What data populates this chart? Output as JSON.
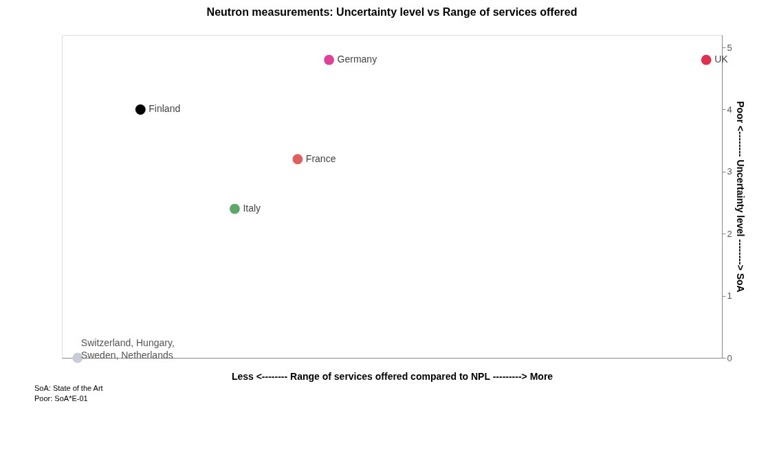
{
  "chart_data": {
    "type": "scatter",
    "title": "Neutron measurements: Uncertainty level vs Range of services offered",
    "xlabel": "Less <-------- Range of services offered compared to NPL ---------> More",
    "ylabel": "Poor <-------- Uncertainty level --------> SoA",
    "categories": [
      null,
      null,
      null,
      null,
      null,
      null,
      null,
      null,
      null,
      null,
      null,
      null,
      null,
      null,
      null,
      null,
      null,
      null,
      null,
      null,
      null
    ],
    "ylim": [
      0,
      5.2
    ],
    "yticks": [
      0,
      1,
      2,
      3,
      4,
      5
    ],
    "tick_labels": "y",
    "grid": false,
    "marker": "circle",
    "series": [
      {
        "name": "Switzerland, Hungary, Sweden, Netherlands",
        "color": "#c8ccd6",
        "values": [
          0,
          null,
          null,
          null,
          null,
          null,
          null,
          null,
          null,
          null,
          null,
          null,
          null,
          null,
          null,
          null,
          null,
          null,
          null,
          null,
          null
        ]
      },
      {
        "name": "Finland",
        "color": "#000000",
        "values": [
          null,
          null,
          4.0,
          null,
          null,
          null,
          null,
          null,
          null,
          null,
          null,
          null,
          null,
          null,
          null,
          null,
          null,
          null,
          null,
          null,
          null
        ]
      },
      {
        "name": "Italy",
        "color": "#5aa86a",
        "values": [
          null,
          null,
          null,
          null,
          null,
          2.4,
          null,
          null,
          null,
          null,
          null,
          null,
          null,
          null,
          null,
          null,
          null,
          null,
          null,
          null,
          null
        ]
      },
      {
        "name": "France",
        "color": "#e06060",
        "values": [
          null,
          null,
          null,
          null,
          null,
          null,
          null,
          3.2,
          null,
          null,
          null,
          null,
          null,
          null,
          null,
          null,
          null,
          null,
          null,
          null,
          null
        ]
      },
      {
        "name": "Germany",
        "color": "#e0409a",
        "values": [
          null,
          null,
          null,
          null,
          null,
          null,
          null,
          null,
          4.8,
          null,
          null,
          null,
          null,
          null,
          null,
          null,
          null,
          null,
          null,
          null,
          null
        ]
      },
      {
        "name": "UK",
        "color": "#e03050",
        "values": [
          null,
          null,
          null,
          null,
          null,
          null,
          null,
          null,
          null,
          null,
          null,
          null,
          null,
          null,
          null,
          null,
          null,
          null,
          null,
          null,
          4.8
        ]
      }
    ],
    "annotations": [
      "SoA: State of the Art",
      "Poor: SoA*E-01"
    ]
  }
}
